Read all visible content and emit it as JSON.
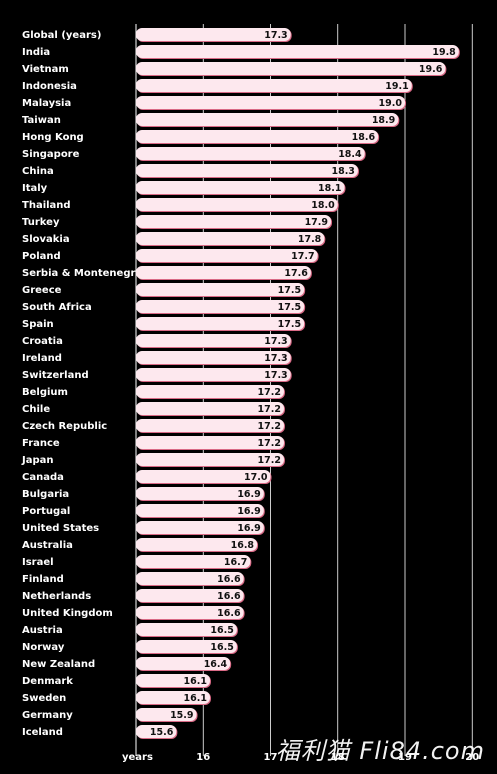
{
  "chart_data": {
    "type": "bar",
    "orientation": "horizontal",
    "categories": [
      "Global (years)",
      "India",
      "Vietnam",
      "Indonesia",
      "Malaysia",
      "Taiwan",
      "Hong Kong",
      "Singapore",
      "China",
      "Italy",
      "Thailand",
      "Turkey",
      "Slovakia",
      "Poland",
      "Serbia & Montenegro",
      "Greece",
      "South Africa",
      "Spain",
      "Croatia",
      "Ireland",
      "Switzerland",
      "Belgium",
      "Chile",
      "Czech Republic",
      "France",
      "Japan",
      "Canada",
      "Bulgaria",
      "Portugal",
      "United States",
      "Australia",
      "Israel",
      "Finland",
      "Netherlands",
      "United Kingdom",
      "Austria",
      "Norway",
      "New Zealand",
      "Denmark",
      "Sweden",
      "Germany",
      "Iceland"
    ],
    "values": [
      17.3,
      19.8,
      19.6,
      19.1,
      19.0,
      18.9,
      18.6,
      18.4,
      18.3,
      18.1,
      18.0,
      17.9,
      17.8,
      17.7,
      17.6,
      17.5,
      17.5,
      17.5,
      17.3,
      17.3,
      17.3,
      17.2,
      17.2,
      17.2,
      17.2,
      17.2,
      17.0,
      16.9,
      16.9,
      16.9,
      16.8,
      16.7,
      16.6,
      16.6,
      16.6,
      16.5,
      16.5,
      16.4,
      16.1,
      16.1,
      15.9,
      15.6
    ],
    "value_labels": [
      "17.3",
      "19.8",
      "19.6",
      "19.1",
      "19.0",
      "18.9",
      "18.6",
      "18.4",
      "18.3",
      "18.1",
      "18.0",
      "17.9",
      "17.8",
      "17.7",
      "17.6",
      "17.5",
      "17.5",
      "17.5",
      "17.3",
      "17.3",
      "17.3",
      "17.2",
      "17.2",
      "17.2",
      "17.2",
      "17.2",
      "17.0",
      "16.9",
      "16.9",
      "16.9",
      "16.8",
      "16.7",
      "16.6",
      "16.6",
      "16.6",
      "16.5",
      "16.5",
      "16.4",
      "16.1",
      "16.1",
      "15.9",
      "15.6"
    ],
    "xlabel": "years",
    "xticks": [
      "16",
      "17",
      "18",
      "19",
      "20"
    ],
    "xlim": [
      15,
      20
    ],
    "grid": true,
    "colors": {
      "bar": "#fde8ee",
      "bar_shadow": "#d96a86",
      "background": "#000000",
      "text": "#ffffff"
    }
  },
  "watermark": "福利猫 Fli84.com"
}
